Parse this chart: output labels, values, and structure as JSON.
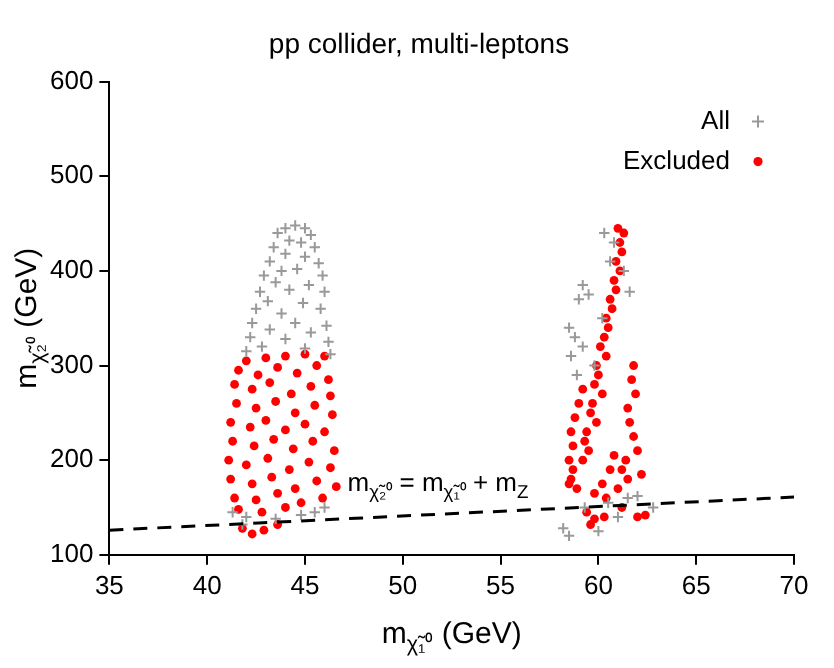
{
  "chart_data": {
    "type": "scatter",
    "title": "pp collider, multi-leptons",
    "xlabel": "m$_{χ̃₁⁰}$ (GeV)",
    "ylabel": "m$_{χ̃₂⁰}$ (GeV)",
    "xlim": [
      35,
      70
    ],
    "xticks": [
      35,
      40,
      45,
      50,
      55,
      60,
      65,
      70
    ],
    "ylim": [
      100,
      600
    ],
    "yticks": [
      100,
      200,
      300,
      400,
      500,
      600
    ],
    "legend": "top right",
    "annotations": [
      "m$_{χ̃₂⁰}$ = m$_{χ̃₁⁰}$ + m$_{Z}$"
    ],
    "series": [
      {
        "name": "All",
        "color": "#999999",
        "marker": "cross",
        "x": [
          44.0,
          44.5,
          45.0,
          43.6,
          45.3,
          44.2,
          44.8,
          43.4,
          45.5,
          44.0,
          45.0,
          43.2,
          45.7,
          43.8,
          44.6,
          42.9,
          45.9,
          43.5,
          45.2,
          42.7,
          44.2,
          46.0,
          43.1,
          44.9,
          42.5,
          45.8,
          43.8,
          42.3,
          44.5,
          46.1,
          43.2,
          45.3,
          42.2,
          44.0,
          46.2,
          42.8,
          45.0,
          42.0,
          46.3,
          41.3,
          42.0,
          43.5,
          44.8,
          46.0,
          41.8,
          45.5,
          60.3,
          60.8,
          60.6,
          61.3,
          59.2,
          59.5,
          59.0,
          61.6,
          58.5,
          58.8,
          59.2,
          58.6,
          59.8,
          58.9,
          60.2,
          58.2,
          58.5,
          59.3,
          60.5,
          61.5,
          62.0,
          62.8,
          61.0,
          60.0
        ],
        "values": [
          445,
          448,
          445,
          440,
          438,
          432,
          430,
          425,
          425,
          418,
          415,
          410,
          408,
          400,
          402,
          395,
          395,
          388,
          385,
          378,
          380,
          378,
          368,
          366,
          360,
          360,
          355,
          345,
          345,
          342,
          338,
          335,
          330,
          328,
          325,
          320,
          318,
          315,
          312,
          145,
          140,
          138,
          142,
          150,
          132,
          145,
          440,
          430,
          410,
          400,
          385,
          375,
          370,
          378,
          340,
          330,
          320,
          310,
          300,
          290,
          350,
          128,
          120,
          150,
          155,
          160,
          162,
          150,
          140,
          125
        ]
      },
      {
        "name": "Excluded",
        "color": "#ff0000",
        "marker": "circle",
        "x": [
          42.0,
          43.0,
          44.0,
          45.0,
          46.0,
          41.6,
          42.6,
          43.6,
          44.6,
          45.6,
          46.2,
          41.4,
          42.3,
          43.2,
          44.3,
          45.3,
          46.3,
          41.5,
          42.5,
          43.5,
          44.5,
          45.5,
          46.4,
          41.2,
          42.2,
          43.0,
          44.0,
          45.0,
          46.0,
          41.3,
          42.4,
          43.4,
          44.4,
          45.4,
          46.5,
          41.1,
          42.0,
          43.1,
          44.2,
          45.2,
          46.3,
          41.2,
          42.3,
          43.3,
          44.5,
          45.6,
          46.6,
          41.4,
          42.5,
          43.6,
          44.8,
          45.9,
          41.6,
          42.8,
          44.0,
          41.8,
          42.3,
          42.9,
          43.6,
          61.0,
          61.3,
          61.1,
          61.2,
          60.9,
          61.1,
          60.8,
          60.9,
          60.6,
          60.7,
          60.4,
          60.5,
          60.3,
          60.1,
          60.4,
          59.9,
          60.0,
          59.8,
          60.2,
          59.7,
          59.6,
          59.9,
          59.4,
          59.3,
          59.5,
          59.2,
          58.6,
          58.8,
          59.0,
          59.2,
          58.7,
          58.5,
          58.7,
          58.6,
          58.9,
          61.8,
          61.7,
          61.9,
          61.5,
          61.6,
          61.8,
          62.0,
          61.4,
          61.2,
          61.5,
          60.8,
          60.6,
          60.2,
          59.8,
          60.4,
          61.0,
          62.2,
          59.4,
          59.8,
          60.3,
          59.6,
          61.2,
          62.0,
          62.4,
          58.5
        ],
        "values": [
          305,
          308,
          310,
          312,
          310,
          295,
          290,
          298,
          292,
          300,
          285,
          280,
          275,
          282,
          270,
          278,
          268,
          260,
          255,
          262,
          250,
          258,
          248,
          240,
          235,
          242,
          232,
          238,
          230,
          220,
          215,
          222,
          212,
          220,
          210,
          200,
          195,
          202,
          190,
          198,
          192,
          180,
          175,
          182,
          170,
          178,
          172,
          160,
          158,
          165,
          155,
          160,
          148,
          145,
          150,
          128,
          122,
          126,
          132,
          445,
          440,
          430,
          420,
          410,
          400,
          390,
          380,
          370,
          360,
          350,
          340,
          330,
          320,
          310,
          300,
          290,
          280,
          270,
          260,
          250,
          240,
          230,
          220,
          210,
          200,
          230,
          245,
          260,
          275,
          215,
          200,
          190,
          180,
          170,
          300,
          285,
          270,
          255,
          240,
          225,
          210,
          200,
          190,
          180,
          205,
          190,
          175,
          165,
          160,
          170,
          185,
          145,
          138,
          140,
          132,
          150,
          140,
          142,
          175
        ]
      },
      {
        "type": "line",
        "color": "#000000",
        "marker": "none",
        "line_style": "dashed",
        "x": [
          35,
          70
        ],
        "values": [
          126,
          161
        ]
      }
    ]
  }
}
